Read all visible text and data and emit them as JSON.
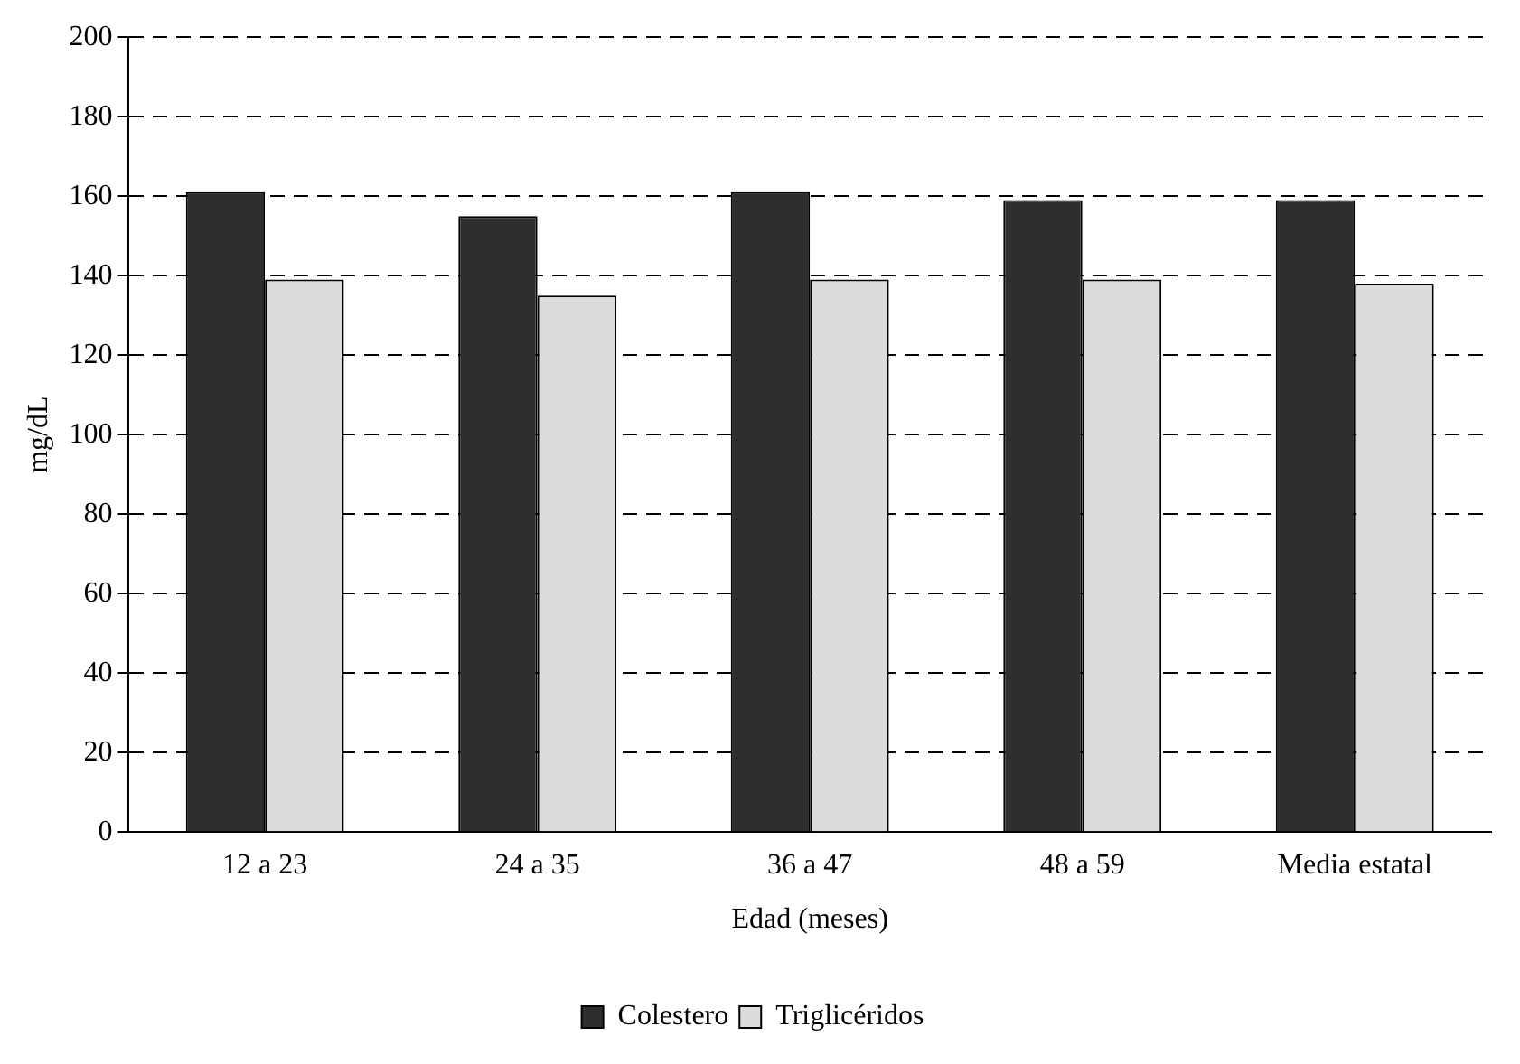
{
  "chart_data": {
    "type": "bar",
    "xlabel": "Edad (meses)",
    "ylabel": "mg/dL",
    "categories": [
      "12 a 23",
      "24 a 35",
      "36 a 47",
      "48 a 59",
      "Media estatal"
    ],
    "series": [
      {
        "name": "Colestero",
        "color": "#2e2e2e",
        "values": [
          161,
          155,
          161,
          159,
          159
        ]
      },
      {
        "name": "Triglicéridos",
        "color": "#dcdcdc",
        "values": [
          139,
          135,
          139,
          139,
          138
        ]
      }
    ],
    "ylim": [
      0,
      200
    ],
    "yticks": [
      0,
      20,
      40,
      60,
      80,
      100,
      120,
      140,
      160,
      180,
      200
    ],
    "grid": "y",
    "legend": "bottom"
  }
}
